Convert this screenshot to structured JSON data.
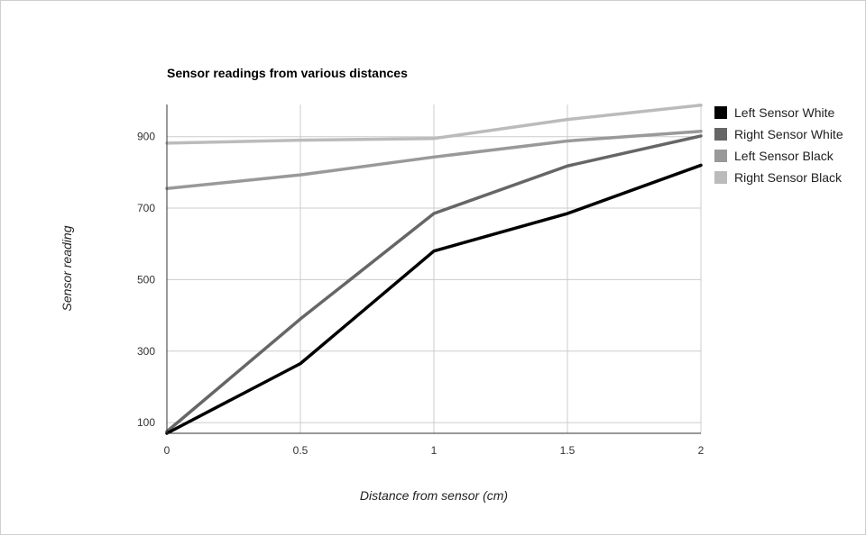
{
  "chart_data": {
    "type": "line",
    "title": "Sensor readings from various distances",
    "xlabel": "Distance from sensor (cm)",
    "ylabel": "Sensor reading",
    "x": [
      0,
      0.5,
      1,
      1.5,
      2
    ],
    "x_ticks": [
      "0",
      "0.5",
      "1",
      "1.5",
      "2"
    ],
    "y_ticks": [
      "100",
      "300",
      "500",
      "700",
      "900"
    ],
    "xlim": [
      0,
      2
    ],
    "ylim": [
      70,
      990
    ],
    "grid": true,
    "legend_position": "right",
    "series": [
      {
        "name": "Left Sensor White",
        "color": "#000000",
        "values": [
          70,
          265,
          580,
          685,
          820
        ]
      },
      {
        "name": "Right Sensor White",
        "color": "#666666",
        "values": [
          75,
          390,
          685,
          818,
          902
        ]
      },
      {
        "name": "Left Sensor Black",
        "color": "#999999",
        "values": [
          755,
          793,
          843,
          888,
          915
        ]
      },
      {
        "name": "Right Sensor Black",
        "color": "#bbbbbb",
        "values": [
          882,
          890,
          895,
          948,
          988
        ]
      }
    ]
  }
}
